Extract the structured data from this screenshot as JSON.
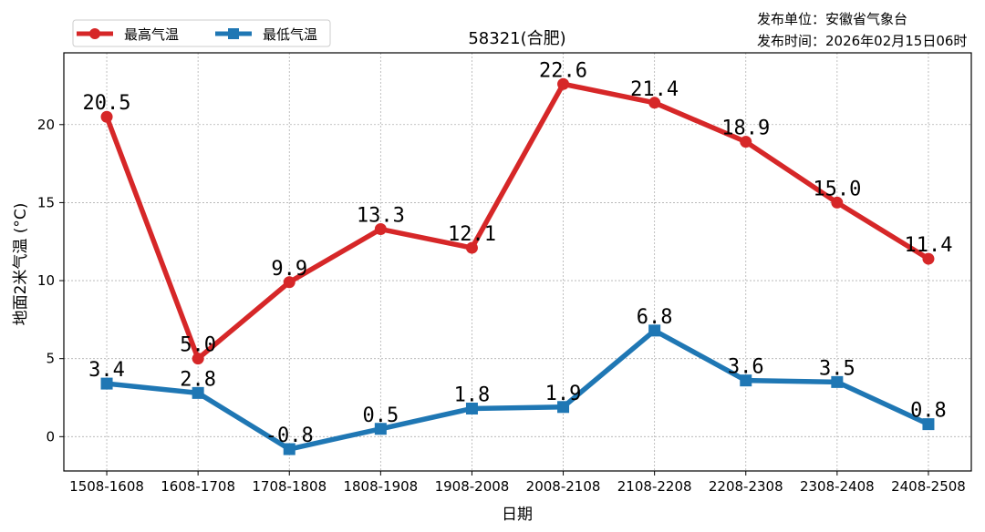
{
  "header": {
    "publisher": "发布单位：安徽省气象台",
    "publish_time": "发布时间：2026年02月15日06时"
  },
  "chart_data": {
    "type": "line",
    "title": "58321(合肥)",
    "xlabel": "日期",
    "ylabel": "地面2米气温 (°C)",
    "categories": [
      "1508-1608",
      "1608-1708",
      "1708-1808",
      "1808-1908",
      "1908-2008",
      "2008-2108",
      "2108-2208",
      "2208-2308",
      "2308-2408",
      "2408-2508"
    ],
    "yticks": [
      0,
      5,
      10,
      15,
      20
    ],
    "ylim": [
      -2.2,
      24.6
    ],
    "grid": true,
    "legend_placement": "top-left outside",
    "series": [
      {
        "name": "最高气温",
        "color": "#d62728",
        "marker": "circle",
        "values": [
          20.5,
          5.0,
          9.9,
          13.3,
          12.1,
          22.6,
          21.4,
          18.9,
          15.0,
          11.4
        ]
      },
      {
        "name": "最低气温",
        "color": "#1f77b4",
        "marker": "square",
        "values": [
          3.4,
          2.8,
          -0.8,
          0.5,
          1.8,
          1.9,
          6.8,
          3.6,
          3.5,
          0.8
        ]
      }
    ]
  }
}
